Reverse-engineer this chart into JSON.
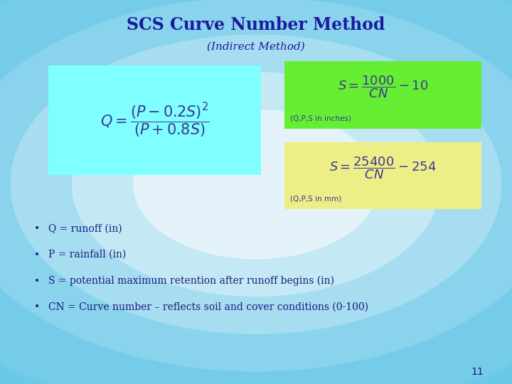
{
  "title": "SCS Curve Number Method",
  "subtitle": "(Indirect Method)",
  "title_color": "#1A1AA0",
  "subtitle_color": "#1A1AA0",
  "bg_color_outer": "#6AC8E8",
  "bg_color_inner": "#FFFFFF",
  "box1_color": "#7FFFFF",
  "box2_color": "#66EE33",
  "box3_color": "#EEEE88",
  "formula_q_latex": "$Q = \\dfrac{(P - 0.2S)^2}{(P + 0.8S)}$",
  "formula_s1_latex": "$S = \\dfrac{1000}{CN} - 10$",
  "formula_s2_latex": "$S = \\dfrac{25400}{CN} - 254$",
  "label1": "(Q,P,S in inches)",
  "label2": "(Q,P,S in mm)",
  "bullets": [
    "Q = runoff (in)",
    "P = rainfall (in)",
    "S = potential maximum retention after runoff begins (in)",
    "CN = Curve number – reflects soil and cover conditions (0-100)"
  ],
  "page_number": "11",
  "formula_text_color": "#3A3A90",
  "bullet_text_color": "#1A1A80"
}
